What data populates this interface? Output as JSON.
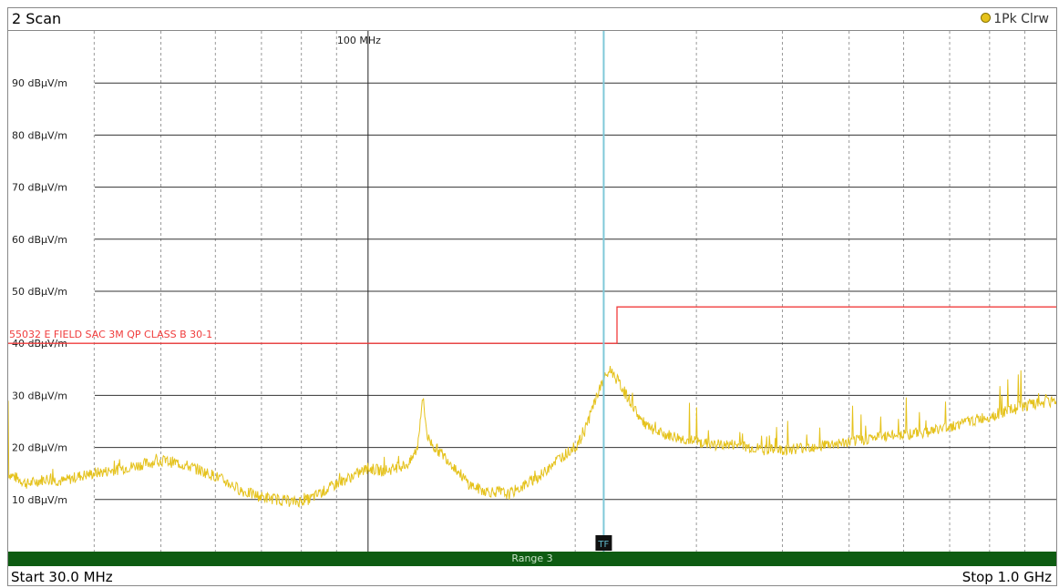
{
  "header": {
    "title": "2 Scan",
    "trace_label": "1Pk Clrw"
  },
  "footer": {
    "start": "Start 30.0 MHz",
    "stop": "Stop 1.0 GHz",
    "range_label": "Range 3",
    "marker_label": "TF"
  },
  "colors": {
    "trace": "#e5c21c",
    "limit_line": "#f03c3c",
    "marker_line": "#7fc8d8",
    "range_bar": "#0e5c12"
  },
  "chart_data": {
    "type": "line",
    "x_scale": "log",
    "x_unit": "MHz",
    "xlim": [
      30,
      1000
    ],
    "ylim": [
      0,
      100
    ],
    "ylabel_unit": "dBµV/m",
    "y_ticks": [
      {
        "value": 10,
        "label": "10 dBµV/m"
      },
      {
        "value": 20,
        "label": "20 dBµV/m"
      },
      {
        "value": 30,
        "label": "30 dBµV/m"
      },
      {
        "value": 40,
        "label": "40 dBµV/m"
      },
      {
        "value": 50,
        "label": "50 dBµV/m"
      },
      {
        "value": 60,
        "label": "60 dBµV/m"
      },
      {
        "value": 70,
        "label": "70 dBµV/m"
      },
      {
        "value": 80,
        "label": "80 dBµV/m"
      },
      {
        "value": 90,
        "label": "90 dBµV/m"
      }
    ],
    "x_major_tick": {
      "value": 100,
      "label": "100 MHz"
    },
    "x_minor_gridlines": [
      40,
      50,
      60,
      70,
      80,
      90,
      200,
      300,
      400,
      500,
      600,
      700,
      800,
      900
    ],
    "grid": true,
    "limit_line": {
      "name": "55032 E FIELD SAC 3M QP CLASS B 30-1",
      "segments": [
        {
          "x_start": 30,
          "x_end": 230,
          "y": 40
        },
        {
          "x_start": 230,
          "x_end": 1000,
          "y": 47
        }
      ]
    },
    "marker": {
      "x": 220,
      "label": "TF"
    },
    "series": [
      {
        "x": [
          30,
          32,
          34,
          36,
          38,
          40,
          42,
          44,
          46,
          48,
          50,
          53,
          56,
          60,
          63,
          66,
          70,
          74,
          78,
          82,
          86,
          90,
          95,
          100,
          105,
          110,
          115,
          118,
          120,
          122,
          125,
          130,
          135,
          140,
          145,
          150,
          155,
          160,
          165,
          170,
          175,
          180,
          185,
          190,
          195,
          200,
          205,
          210,
          215,
          220,
          225,
          230,
          240,
          250,
          260,
          280,
          300,
          320,
          340,
          360,
          380,
          400,
          430,
          460,
          500,
          550,
          600,
          650,
          700,
          750,
          800,
          850,
          900,
          950,
          1000
        ],
        "y": [
          15,
          13,
          14,
          13.5,
          14.5,
          15,
          15.5,
          16,
          16.5,
          17,
          17.5,
          17,
          16,
          14.5,
          13,
          11.5,
          10.5,
          10,
          9.5,
          10,
          11.5,
          13,
          14.5,
          16,
          15.5,
          16,
          17,
          20,
          30,
          22,
          20,
          18,
          15.5,
          13,
          12,
          11.5,
          11.5,
          11,
          12,
          13,
          14,
          15,
          17,
          18,
          19,
          20,
          22,
          26,
          30,
          33,
          35,
          33,
          29,
          25,
          23,
          22,
          21,
          20.5,
          20.5,
          20,
          19.5,
          19.5,
          20,
          20.5,
          21,
          22,
          22.5,
          23,
          24,
          25,
          26,
          27,
          28,
          28.5,
          29
        ]
      }
    ]
  }
}
